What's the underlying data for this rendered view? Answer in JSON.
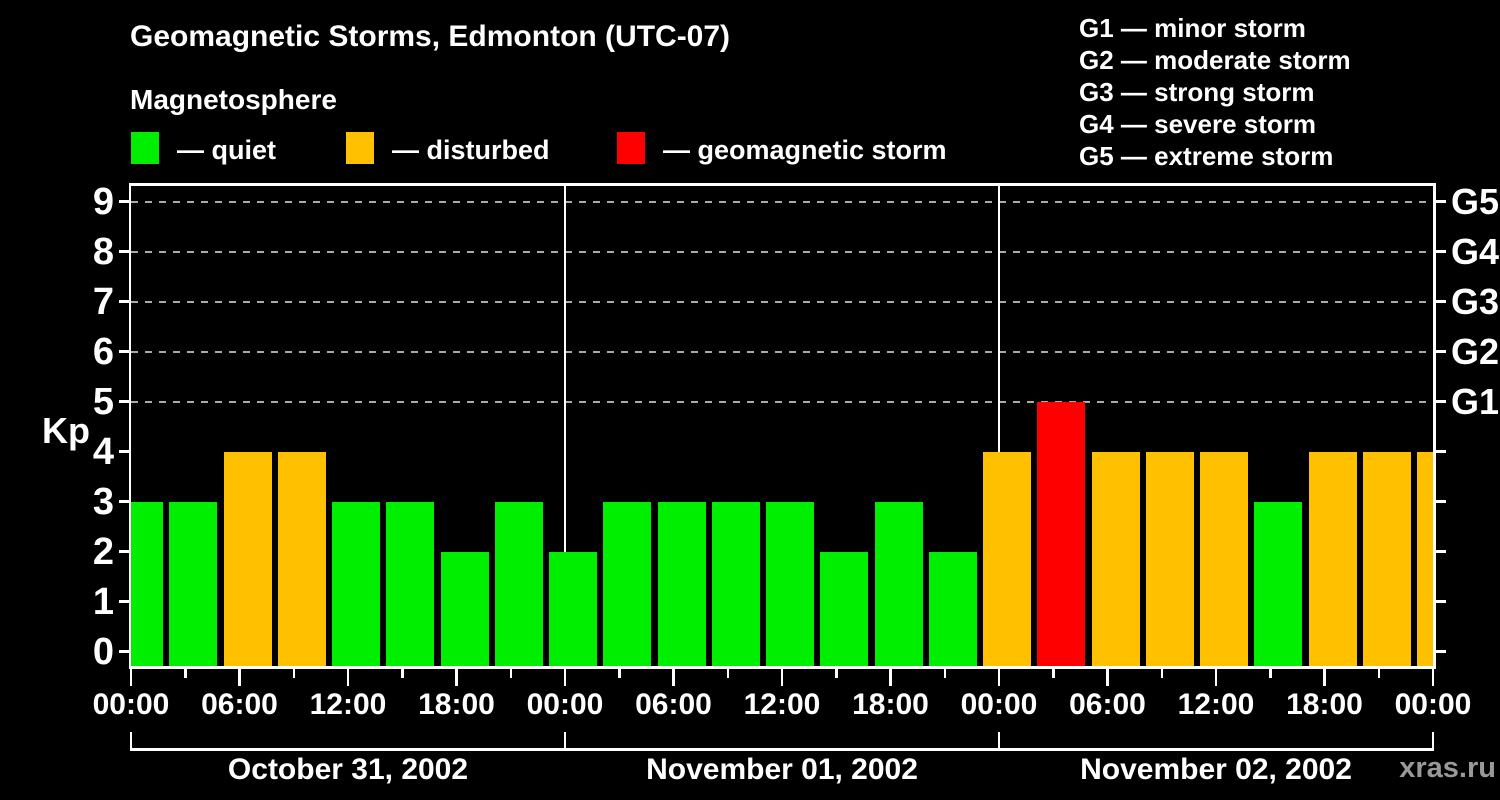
{
  "page": {
    "background": "#000000",
    "watermark": "xras.ru"
  },
  "header": {
    "title": "Geomagnetic Storms, Edmonton (UTC-07)",
    "subtitle": "Magnetosphere"
  },
  "kp_legend": [
    {
      "state": "quiet",
      "color": "#00ee00",
      "label": "— quiet"
    },
    {
      "state": "disturbed",
      "color": "#ffc000",
      "label": "— disturbed"
    },
    {
      "state": "storm",
      "color": "#ff0000",
      "label": "— geomagnetic storm"
    }
  ],
  "storm_scale_legend": [
    "G1 — minor storm",
    "G2 — moderate storm",
    "G3 — strong storm",
    "G4 — severe storm",
    "G5 — extreme storm"
  ],
  "chart_data": {
    "type": "bar",
    "title": "Geomagnetic Storms, Edmonton (UTC-07)",
    "ylabel": "Kp",
    "ylim": [
      -0.3,
      9.4
    ],
    "yticks": [
      0,
      1,
      2,
      3,
      4,
      5,
      6,
      7,
      8,
      9
    ],
    "grid_levels": [
      5,
      6,
      7,
      8,
      9
    ],
    "grid_style": "dashed",
    "legend_position": "top-left",
    "right_axis": [
      {
        "kp": 5,
        "label": "G1"
      },
      {
        "kp": 6,
        "label": "G2"
      },
      {
        "kp": 7,
        "label": "G3"
      },
      {
        "kp": 8,
        "label": "G4"
      },
      {
        "kp": 9,
        "label": "G5"
      }
    ],
    "bar_interval_hours": 3,
    "x_labels_6h": [
      "00:00",
      "06:00",
      "12:00",
      "18:00",
      "00:00",
      "06:00",
      "12:00",
      "18:00",
      "00:00",
      "06:00",
      "12:00",
      "18:00",
      "00:00"
    ],
    "colors": {
      "quiet": "#00ee00",
      "disturbed": "#ffc000",
      "storm": "#ff0000"
    },
    "state_rule": {
      "quiet": "Kp <= 3",
      "disturbed": "Kp = 4",
      "storm": "Kp >= 5"
    },
    "days": [
      {
        "date": "October 31, 2002",
        "kp": [
          3,
          3,
          4,
          4,
          3,
          3,
          2,
          3
        ]
      },
      {
        "date": "November 01, 2002",
        "kp": [
          2,
          3,
          3,
          3,
          3,
          2,
          3,
          2
        ]
      },
      {
        "date": "November 02, 2002",
        "kp": [
          4,
          5,
          4,
          4,
          4,
          3,
          4,
          4
        ]
      }
    ],
    "trailing_bar_kp": 4
  }
}
